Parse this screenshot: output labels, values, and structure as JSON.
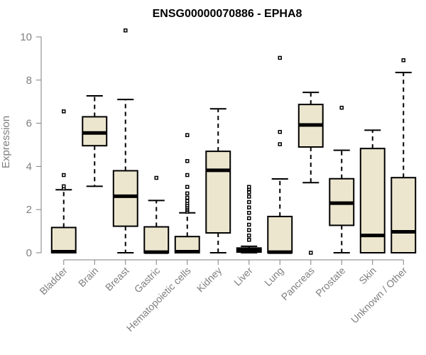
{
  "chart_data": {
    "type": "box",
    "title": "ENSG00000070886 - EPHA8",
    "ylabel": "Expression",
    "xlabel": "",
    "ylim": [
      0,
      10
    ],
    "yticks": [
      0,
      2,
      4,
      6,
      8,
      10
    ],
    "colors": {
      "box_fill": "#ede6cf",
      "stroke": "#000000",
      "axis": "#7f7f7f"
    },
    "categories": [
      "Bladder",
      "Brain",
      "Breast",
      "Gastric",
      "Hematopoietic cells",
      "Kidney",
      "Liver",
      "Lung",
      "Pancreas",
      "Prostate",
      "Skin",
      "Unknown / Other"
    ],
    "boxes": [
      {
        "name": "Bladder",
        "whisker_low": 0,
        "q1": 0,
        "median": 0.05,
        "q3": 1.17,
        "whisker_high": 2.92,
        "outliers": [
          2.98,
          3.08,
          3.6,
          6.55
        ]
      },
      {
        "name": "Brain",
        "whisker_low": 3.08,
        "q1": 4.96,
        "median": 5.55,
        "q3": 6.3,
        "whisker_high": 7.27,
        "outliers": []
      },
      {
        "name": "Breast",
        "whisker_low": 0,
        "q1": 1.23,
        "median": 2.62,
        "q3": 3.8,
        "whisker_high": 7.1,
        "outliers": [
          10.3
        ]
      },
      {
        "name": "Gastric",
        "whisker_low": 0,
        "q1": 0,
        "median": 0.03,
        "q3": 1.2,
        "whisker_high": 2.42,
        "outliers": [
          3.47
        ]
      },
      {
        "name": "Hematopoietic cells",
        "whisker_low": 0,
        "q1": 0,
        "median": 0.05,
        "q3": 0.75,
        "whisker_high": 1.85,
        "outliers": [
          1.9,
          1.98,
          2.05,
          2.12,
          2.2,
          2.3,
          2.4,
          2.55,
          2.75,
          3.05,
          3.6,
          4.25,
          5.45
        ]
      },
      {
        "name": "Kidney",
        "whisker_low": 0,
        "q1": 0.92,
        "median": 3.82,
        "q3": 4.7,
        "whisker_high": 6.67,
        "outliers": []
      },
      {
        "name": "Liver",
        "whisker_low": 0,
        "q1": 0.03,
        "median": 0.12,
        "q3": 0.22,
        "whisker_high": 0.3,
        "outliers": [
          0.6,
          0.8,
          1.05,
          1.3,
          1.6,
          1.85,
          2.1,
          2.35,
          2.6,
          2.8,
          2.95,
          3.05
        ]
      },
      {
        "name": "Lung",
        "whisker_low": 0,
        "q1": 0,
        "median": 0.03,
        "q3": 1.68,
        "whisker_high": 3.42,
        "outliers": [
          5.03,
          5.6,
          9.03
        ]
      },
      {
        "name": "Pancreas",
        "whisker_low": 3.25,
        "q1": 4.9,
        "median": 5.92,
        "q3": 6.87,
        "whisker_high": 7.43,
        "outliers": [
          0
        ]
      },
      {
        "name": "Prostate",
        "whisker_low": 0,
        "q1": 1.27,
        "median": 2.3,
        "q3": 3.43,
        "whisker_high": 4.75,
        "outliers": [
          6.72
        ]
      },
      {
        "name": "Skin",
        "whisker_low": 0,
        "q1": 0,
        "median": 0.8,
        "q3": 4.83,
        "whisker_high": 5.68,
        "outliers": []
      },
      {
        "name": "Unknown / Other",
        "whisker_low": 0,
        "q1": 0,
        "median": 0.97,
        "q3": 3.48,
        "whisker_high": 8.35,
        "outliers": [
          8.92
        ]
      }
    ]
  }
}
